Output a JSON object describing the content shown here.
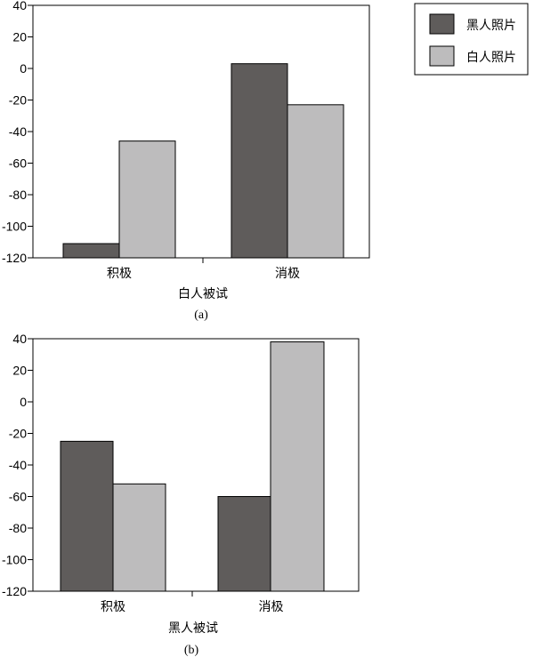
{
  "legend": {
    "items": [
      {
        "label": "黑人照片",
        "color": "#5f5c5b"
      },
      {
        "label": "白人照片",
        "color": "#bdbcbd"
      }
    ]
  },
  "chart_data": [
    {
      "type": "bar",
      "subplot_label": "(a)",
      "xlabel": "白人被试",
      "categories": [
        "积极",
        "消极"
      ],
      "series": [
        {
          "name": "黑人照片",
          "color": "#5f5c5b",
          "values": [
            -111,
            3
          ]
        },
        {
          "name": "白人照片",
          "color": "#bdbcbd",
          "values": [
            -46,
            -23
          ]
        }
      ],
      "ylim": [
        -120,
        40
      ],
      "yticks": [
        40,
        20,
        0,
        -20,
        -40,
        -60,
        -80,
        -100,
        -120
      ]
    },
    {
      "type": "bar",
      "subplot_label": "(b)",
      "xlabel": "黑人被试",
      "categories": [
        "积极",
        "消极"
      ],
      "series": [
        {
          "name": "黑人照片",
          "color": "#5f5c5b",
          "values": [
            -25,
            -60
          ]
        },
        {
          "name": "白人照片",
          "color": "#bdbcbd",
          "values": [
            -52,
            38
          ]
        }
      ],
      "ylim": [
        -120,
        40
      ],
      "yticks": [
        40,
        20,
        0,
        -20,
        -40,
        -60,
        -80,
        -100,
        -120
      ]
    }
  ]
}
